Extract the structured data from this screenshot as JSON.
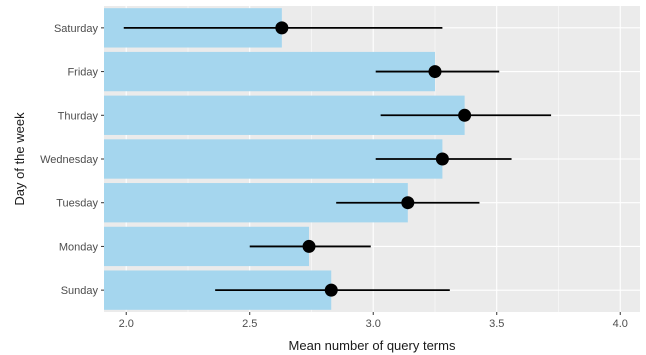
{
  "chart_data": {
    "type": "bar",
    "orientation": "horizontal",
    "categories": [
      "Sunday",
      "Monday",
      "Tuesday",
      "Wednesday",
      "Thurday",
      "Friday",
      "Saturday"
    ],
    "values": [
      2.83,
      2.74,
      3.14,
      3.28,
      3.37,
      3.25,
      2.63
    ],
    "error_low": [
      2.36,
      2.5,
      2.85,
      3.01,
      3.03,
      3.01,
      1.99
    ],
    "error_high": [
      3.31,
      2.99,
      3.43,
      3.56,
      3.72,
      3.51,
      3.28
    ],
    "xlabel": "Mean number of query terms",
    "ylabel": "Day of the week",
    "xlim": [
      1.91,
      4.08
    ],
    "xticks": [
      2.0,
      2.5,
      3.0,
      3.5,
      4.0
    ],
    "xtick_labels": [
      "2.0",
      "2.5",
      "3.0",
      "3.5",
      "4.0"
    ],
    "grid": true,
    "colors": {
      "bar": "#a5d6ee",
      "panel": "#ebebeb",
      "grid_major": "#ffffff",
      "point": "#000000",
      "errorbar": "#000000"
    }
  }
}
